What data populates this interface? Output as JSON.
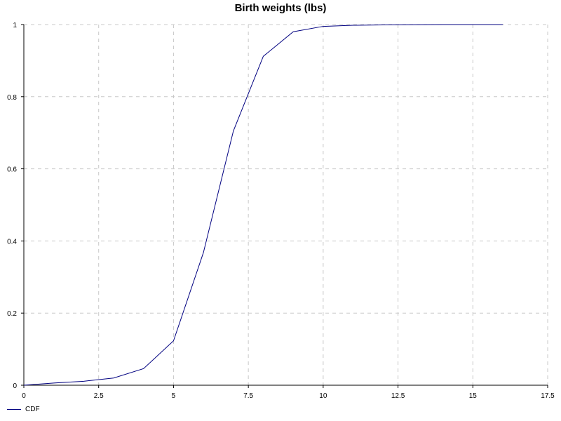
{
  "chart_data": {
    "type": "line",
    "title": "Birth weights (lbs)",
    "xlabel": "",
    "ylabel": "",
    "xlim": [
      0,
      17.5
    ],
    "ylim": [
      0,
      1
    ],
    "x_ticks": [
      "0",
      "2.5",
      "5",
      "7.5",
      "10",
      "12.5",
      "15",
      "17.5"
    ],
    "y_ticks": [
      "0",
      "0.2",
      "0.4",
      "0.6",
      "0.8",
      "1"
    ],
    "grid": true,
    "legend_position": "bottom-left",
    "series": [
      {
        "name": "CDF",
        "color": "#000080",
        "x": [
          0,
          1,
          2,
          3,
          4,
          5,
          6,
          7,
          8,
          9,
          10,
          11,
          12,
          13,
          14,
          15,
          16
        ],
        "y": [
          0,
          0.006,
          0.011,
          0.02,
          0.046,
          0.123,
          0.368,
          0.705,
          0.912,
          0.98,
          0.995,
          0.998,
          0.999,
          0.9995,
          1.0,
          1.0,
          1.0
        ]
      }
    ]
  }
}
